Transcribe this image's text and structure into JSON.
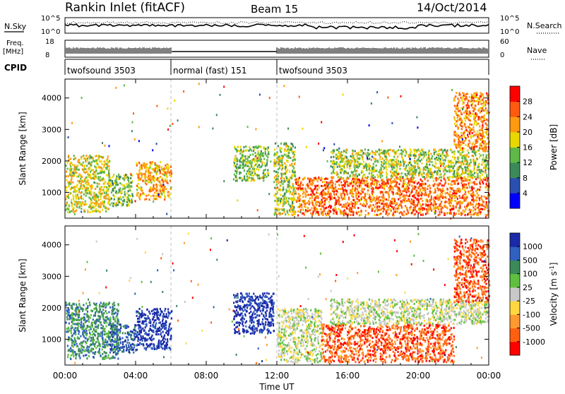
{
  "header": {
    "title": "Rankin Inlet (fitACF)",
    "beam": "Beam 15",
    "date": "14/Oct/2014"
  },
  "noise_panel": {
    "left_label": "N.Sky",
    "right_label": "N.Search",
    "left_ticks": [
      "10^5",
      "10^0"
    ],
    "right_ticks": [
      "10^5",
      "10^0"
    ]
  },
  "freq_panel": {
    "left_label_line1": "Freq.",
    "left_label_line2": "[MHz]",
    "right_label": "Nave",
    "left_ticks": [
      "18",
      "8"
    ],
    "right_ticks": [
      "60",
      "0"
    ]
  },
  "cpid_panel": {
    "label": "CPID",
    "modes": [
      {
        "name": "twofsound 3503",
        "start_hour": 0,
        "end_hour": 6
      },
      {
        "name": "normal (fast) 151",
        "start_hour": 6,
        "end_hour": 12
      },
      {
        "name": "twofsound 3503",
        "start_hour": 12,
        "end_hour": 24
      }
    ]
  },
  "colors": {
    "power": [
      "#0000ff",
      "#2a4fb0",
      "#3c8a5a",
      "#5fb848",
      "#e8d800",
      "#ff9a10",
      "#ff5a10",
      "#ff0000"
    ],
    "velocity": [
      "#1a2aa8",
      "#3060c0",
      "#3c8a5a",
      "#5fc040",
      "#c8c8c8",
      "#ffd840",
      "#ff9a30",
      "#ff6010",
      "#ff0000"
    ]
  },
  "chart_data": [
    {
      "type": "heatmap",
      "title": "Power",
      "xlabel": "",
      "ylabel": "Slant Range [km]",
      "xlim": [
        0,
        24
      ],
      "ylim": [
        180,
        4600
      ],
      "x_tick_labels": [
        "00:00",
        "04:00",
        "08:00",
        "12:00",
        "16:00",
        "20:00",
        "00:00"
      ],
      "y_ticks": [
        1000,
        2000,
        3000,
        4000
      ],
      "colorbar": {
        "label": "Power [dB]",
        "ticks": [
          "4",
          "8",
          "12",
          "16",
          "20",
          "24",
          "28"
        ],
        "range": [
          0,
          32
        ]
      },
      "scatter_regions": [
        {
          "hours": [
            0.0,
            2.5
          ],
          "range_km": [
            400,
            2200
          ],
          "value": "green-orange",
          "mean_db": 18
        },
        {
          "hours": [
            2.5,
            3.8
          ],
          "range_km": [
            600,
            1600
          ],
          "value": "green",
          "mean_db": 14
        },
        {
          "hours": [
            4.0,
            6.0
          ],
          "range_km": [
            800,
            2000
          ],
          "value": "orange-red",
          "mean_db": 22
        },
        {
          "hours": [
            9.5,
            11.5
          ],
          "range_km": [
            1400,
            2500
          ],
          "value": "green",
          "mean_db": 14
        },
        {
          "hours": [
            11.8,
            13.0
          ],
          "range_km": [
            300,
            2600
          ],
          "value": "mixed",
          "mean_db": 16
        },
        {
          "hours": [
            13.0,
            24.0
          ],
          "range_km": [
            300,
            1500
          ],
          "value": "red",
          "mean_db": 26
        },
        {
          "hours": [
            15.0,
            24.0
          ],
          "range_km": [
            1500,
            2400
          ],
          "value": "green-orange",
          "mean_db": 16
        },
        {
          "hours": [
            22.0,
            24.0
          ],
          "range_km": [
            2400,
            4200
          ],
          "value": "red",
          "mean_db": 24
        }
      ]
    },
    {
      "type": "heatmap",
      "title": "Velocity",
      "xlabel": "Time UT",
      "ylabel": "Slant Range [km]",
      "xlim": [
        0,
        24
      ],
      "ylim": [
        180,
        4600
      ],
      "x_tick_labels": [
        "00:00",
        "04:00",
        "08:00",
        "12:00",
        "16:00",
        "20:00",
        "00:00"
      ],
      "y_ticks": [
        1000,
        2000,
        3000,
        4000
      ],
      "colorbar": {
        "label": "Velocity [m s",
        "label_sup": "-1",
        "label_end": "]",
        "ticks": [
          "1000",
          "500",
          "100",
          "25",
          "-25",
          "-100",
          "-500",
          "-1000"
        ]
      },
      "scatter_regions": [
        {
          "hours": [
            0.0,
            3.0
          ],
          "range_km": [
            400,
            2200
          ],
          "value": "green",
          "mean_ms": 200
        },
        {
          "hours": [
            2.5,
            4.0
          ],
          "range_km": [
            600,
            1500
          ],
          "value": "green-blue",
          "mean_ms": 400
        },
        {
          "hours": [
            4.0,
            6.0
          ],
          "range_km": [
            700,
            2000
          ],
          "value": "blue",
          "mean_ms": 700
        },
        {
          "hours": [
            9.5,
            11.8
          ],
          "range_km": [
            1200,
            2500
          ],
          "value": "blue",
          "mean_ms": 700
        },
        {
          "hours": [
            12.0,
            14.5
          ],
          "range_km": [
            300,
            2000
          ],
          "value": "orange-blue",
          "mean_ms": 0
        },
        {
          "hours": [
            14.5,
            22.0
          ],
          "range_km": [
            300,
            1500
          ],
          "value": "orange",
          "mean_ms": -300
        },
        {
          "hours": [
            15.0,
            24.0
          ],
          "range_km": [
            1500,
            2300
          ],
          "value": "grey",
          "mean_ms": 0
        },
        {
          "hours": [
            22.0,
            24.0
          ],
          "range_km": [
            2200,
            4200
          ],
          "value": "orange",
          "mean_ms": -400
        }
      ]
    }
  ]
}
